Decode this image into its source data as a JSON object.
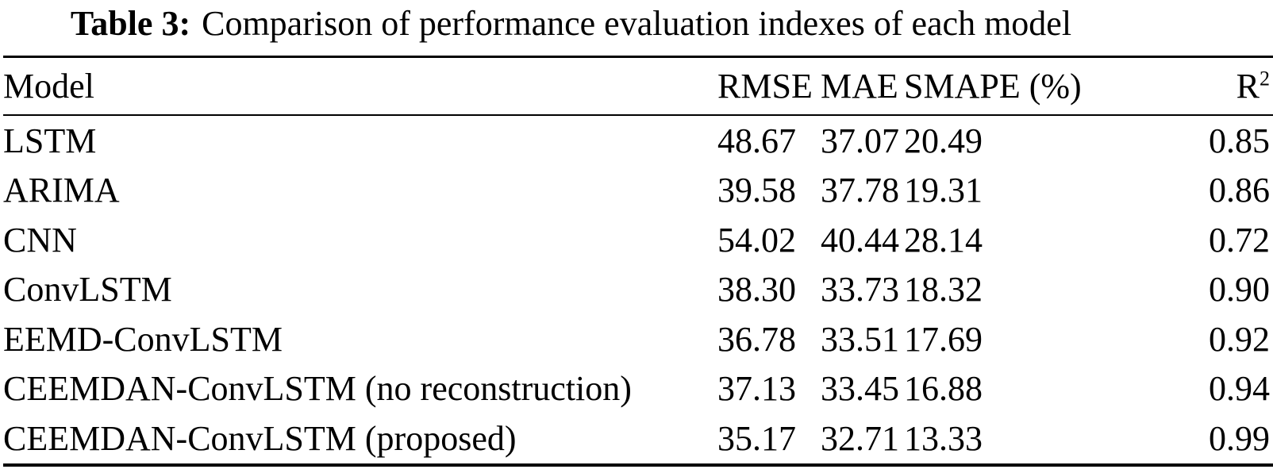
{
  "caption": {
    "label": "Table 3:",
    "text": "Comparison of performance evaluation indexes of each model"
  },
  "table": {
    "columns": [
      {
        "key": "model",
        "label": "Model"
      },
      {
        "key": "rmse",
        "label": "RMSE"
      },
      {
        "key": "mae",
        "label": "MAE"
      },
      {
        "key": "smape",
        "label": "SMAPE (%)"
      },
      {
        "key": "r2",
        "label": "R",
        "sup": "2"
      }
    ],
    "rows": [
      {
        "model": "LSTM",
        "rmse": "48.67",
        "mae": "37.07",
        "smape": "20.49",
        "r2": "0.85"
      },
      {
        "model": "ARIMA",
        "rmse": "39.58",
        "mae": "37.78",
        "smape": "19.31",
        "r2": "0.86"
      },
      {
        "model": "CNN",
        "rmse": "54.02",
        "mae": "40.44",
        "smape": "28.14",
        "r2": "0.72"
      },
      {
        "model": "ConvLSTM",
        "rmse": "38.30",
        "mae": "33.73",
        "smape": "18.32",
        "r2": "0.90"
      },
      {
        "model": "EEMD-ConvLSTM",
        "rmse": "36.78",
        "mae": "33.51",
        "smape": "17.69",
        "r2": "0.92"
      },
      {
        "model": "CEEMDAN-ConvLSTM (no reconstruction)",
        "rmse": "37.13",
        "mae": "33.45",
        "smape": "16.88",
        "r2": "0.94"
      },
      {
        "model": "CEEMDAN-ConvLSTM (proposed)",
        "rmse": "35.17",
        "mae": "32.71",
        "smape": "13.33",
        "r2": "0.99"
      }
    ]
  },
  "colors": {
    "text": "#000000",
    "background": "#ffffff",
    "rule": "#000000"
  }
}
